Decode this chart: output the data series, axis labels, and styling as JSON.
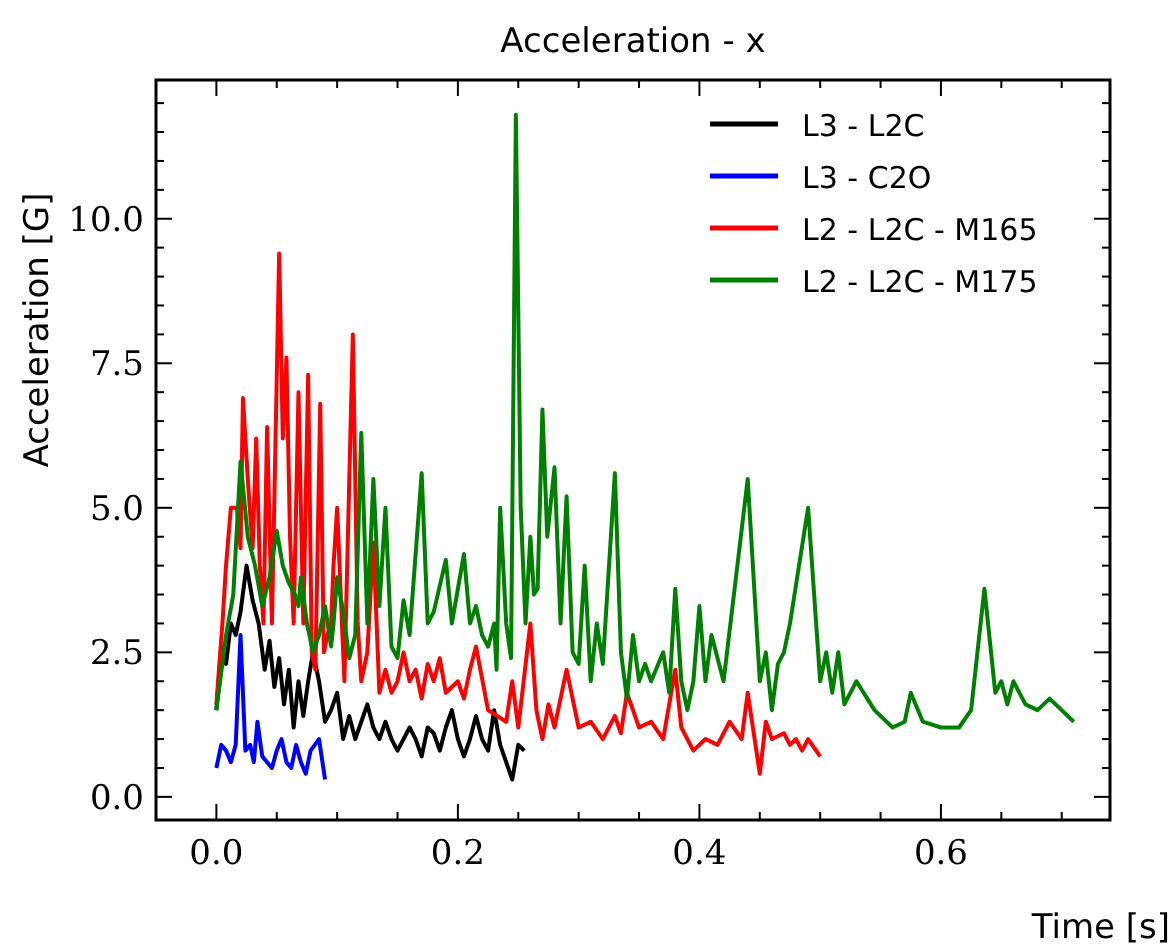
{
  "chart_data": {
    "type": "line",
    "title": "Acceleration - x",
    "xlabel": "Time [s]",
    "ylabel": "Acceleration [G]",
    "xlim": [
      -0.05,
      0.74
    ],
    "ylim": [
      -0.4,
      12.4
    ],
    "xticks": [
      {
        "value": 0,
        "label": "0.0"
      },
      {
        "value": 0.05,
        "label": null
      },
      {
        "value": 0.1,
        "label": null
      },
      {
        "value": 0.15,
        "label": null
      },
      {
        "value": 0.2,
        "label": "0.2"
      },
      {
        "value": 0.25,
        "label": null
      },
      {
        "value": 0.3,
        "label": null
      },
      {
        "value": 0.35,
        "label": null
      },
      {
        "value": 0.4,
        "label": "0.4"
      },
      {
        "value": 0.45,
        "label": null
      },
      {
        "value": 0.5,
        "label": null
      },
      {
        "value": 0.55,
        "label": null
      },
      {
        "value": 0.6,
        "label": "0.6"
      },
      {
        "value": 0.65,
        "label": null
      },
      {
        "value": 0.7,
        "label": null
      }
    ],
    "yticks": [
      {
        "value": 0,
        "label": "0.0"
      },
      {
        "value": 0.5,
        "label": null
      },
      {
        "value": 1,
        "label": null
      },
      {
        "value": 1.5,
        "label": null
      },
      {
        "value": 2,
        "label": null
      },
      {
        "value": 2.5,
        "label": "2.5"
      },
      {
        "value": 3,
        "label": null
      },
      {
        "value": 3.5,
        "label": null
      },
      {
        "value": 4,
        "label": null
      },
      {
        "value": 4.5,
        "label": null
      },
      {
        "value": 5,
        "label": "5.0"
      },
      {
        "value": 5.5,
        "label": null
      },
      {
        "value": 6,
        "label": null
      },
      {
        "value": 6.5,
        "label": null
      },
      {
        "value": 7,
        "label": null
      },
      {
        "value": 7.5,
        "label": "7.5"
      },
      {
        "value": 8,
        "label": null
      },
      {
        "value": 8.5,
        "label": null
      },
      {
        "value": 9,
        "label": null
      },
      {
        "value": 9.5,
        "label": null
      },
      {
        "value": 10,
        "label": "10.0"
      },
      {
        "value": 10.5,
        "label": null
      },
      {
        "value": 11,
        "label": null
      },
      {
        "value": 11.5,
        "label": null
      },
      {
        "value": 12,
        "label": null
      }
    ],
    "grid": false,
    "legend": "top right",
    "line_style": "solid",
    "marker": "none",
    "series": [
      {
        "name": "L3 - L2C",
        "color": "#000000",
        "x": [
          0,
          0.004,
          0.008,
          0.012,
          0.016,
          0.02,
          0.025,
          0.03,
          0.035,
          0.04,
          0.044,
          0.048,
          0.052,
          0.056,
          0.06,
          0.064,
          0.068,
          0.072,
          0.076,
          0.08,
          0.085,
          0.09,
          0.095,
          0.1,
          0.105,
          0.11,
          0.115,
          0.12,
          0.125,
          0.13,
          0.135,
          0.14,
          0.145,
          0.15,
          0.16,
          0.165,
          0.17,
          0.175,
          0.18,
          0.185,
          0.19,
          0.195,
          0.2,
          0.205,
          0.21,
          0.215,
          0.22,
          0.225,
          0.23,
          0.235,
          0.24,
          0.245,
          0.25,
          0.255
        ],
        "values": [
          1.5,
          2.6,
          2.3,
          3.0,
          2.8,
          3.2,
          4.0,
          3.4,
          3.0,
          2.2,
          2.7,
          1.9,
          2.4,
          1.6,
          2.2,
          1.2,
          2.0,
          1.4,
          2.0,
          2.5,
          2.0,
          1.3,
          1.5,
          1.8,
          1.0,
          1.4,
          1.0,
          1.3,
          1.6,
          1.2,
          1.0,
          1.3,
          1.0,
          0.8,
          1.2,
          1.0,
          0.7,
          1.2,
          1.1,
          0.8,
          1.2,
          1.5,
          1.0,
          0.7,
          1.0,
          1.4,
          1.0,
          0.8,
          1.5,
          0.9,
          0.6,
          0.3,
          0.9,
          0.8
        ]
      },
      {
        "name": "L3 - C2O",
        "color": "#0000ff",
        "x": [
          0,
          0.004,
          0.008,
          0.012,
          0.016,
          0.02,
          0.024,
          0.028,
          0.031,
          0.034,
          0.038,
          0.042,
          0.046,
          0.05,
          0.054,
          0.058,
          0.062,
          0.066,
          0.07,
          0.074,
          0.078,
          0.085,
          0.09
        ],
        "values": [
          0.5,
          0.9,
          0.8,
          0.6,
          0.9,
          2.8,
          0.8,
          0.9,
          0.6,
          1.3,
          0.7,
          0.6,
          0.5,
          0.8,
          1.0,
          0.6,
          0.5,
          0.9,
          0.6,
          0.4,
          0.8,
          1.0,
          0.3
        ]
      },
      {
        "name": "L2 - L2C - M165",
        "color": "#ff0000",
        "x": [
          0,
          0.005,
          0.008,
          0.012,
          0.017,
          0.02,
          0.022,
          0.026,
          0.03,
          0.033,
          0.036,
          0.039,
          0.042,
          0.046,
          0.052,
          0.055,
          0.058,
          0.061,
          0.064,
          0.068,
          0.072,
          0.076,
          0.079,
          0.082,
          0.086,
          0.089,
          0.092,
          0.095,
          0.097,
          0.1,
          0.106,
          0.113,
          0.117,
          0.12,
          0.125,
          0.13,
          0.135,
          0.14,
          0.145,
          0.15,
          0.155,
          0.16,
          0.165,
          0.17,
          0.175,
          0.18,
          0.185,
          0.19,
          0.2,
          0.205,
          0.21,
          0.215,
          0.225,
          0.24,
          0.245,
          0.25,
          0.26,
          0.265,
          0.27,
          0.275,
          0.28,
          0.29,
          0.3,
          0.31,
          0.32,
          0.33,
          0.335,
          0.34,
          0.35,
          0.36,
          0.37,
          0.38,
          0.385,
          0.395,
          0.405,
          0.415,
          0.425,
          0.435,
          0.44,
          0.45,
          0.455,
          0.46,
          0.47,
          0.475,
          0.48,
          0.485,
          0.49,
          0.5
        ],
        "values": [
          1.6,
          3.0,
          4.0,
          5.0,
          5.0,
          4.3,
          6.9,
          5.5,
          4.3,
          6.2,
          4.0,
          3.0,
          6.4,
          3.0,
          9.4,
          6.2,
          7.6,
          4.5,
          3.0,
          7.0,
          3.0,
          7.3,
          2.5,
          2.2,
          6.8,
          2.5,
          2.8,
          3.0,
          4.0,
          5.0,
          2.0,
          8.0,
          3.0,
          2.0,
          2.5,
          4.4,
          1.8,
          2.2,
          1.8,
          2.0,
          2.5,
          2.0,
          2.2,
          1.7,
          2.3,
          2.0,
          2.4,
          1.8,
          2.0,
          1.7,
          2.2,
          2.6,
          1.5,
          1.3,
          2.0,
          1.2,
          3.0,
          1.5,
          1.0,
          1.6,
          1.2,
          2.2,
          1.2,
          1.3,
          1.0,
          1.4,
          1.1,
          1.8,
          1.2,
          1.3,
          1.0,
          2.2,
          1.2,
          0.8,
          1.0,
          0.9,
          1.3,
          1.0,
          1.8,
          0.4,
          1.3,
          1.0,
          1.1,
          0.9,
          1.0,
          0.8,
          1.0,
          0.7
        ]
      },
      {
        "name": "L2 - L2C - M175",
        "color": "#008000",
        "x": [
          0,
          0.008,
          0.014,
          0.02,
          0.026,
          0.032,
          0.038,
          0.044,
          0.05,
          0.055,
          0.06,
          0.065,
          0.068,
          0.07,
          0.075,
          0.08,
          0.085,
          0.09,
          0.095,
          0.097,
          0.1,
          0.105,
          0.11,
          0.115,
          0.12,
          0.125,
          0.13,
          0.135,
          0.14,
          0.145,
          0.15,
          0.155,
          0.16,
          0.17,
          0.175,
          0.18,
          0.19,
          0.195,
          0.205,
          0.21,
          0.215,
          0.22,
          0.225,
          0.23,
          0.232,
          0.235,
          0.24,
          0.244,
          0.248,
          0.252,
          0.256,
          0.26,
          0.263,
          0.266,
          0.27,
          0.274,
          0.28,
          0.285,
          0.29,
          0.295,
          0.3,
          0.305,
          0.31,
          0.315,
          0.32,
          0.33,
          0.335,
          0.34,
          0.345,
          0.35,
          0.355,
          0.36,
          0.37,
          0.375,
          0.38,
          0.385,
          0.39,
          0.395,
          0.4,
          0.405,
          0.41,
          0.42,
          0.44,
          0.45,
          0.455,
          0.46,
          0.465,
          0.47,
          0.475,
          0.49,
          0.5,
          0.505,
          0.51,
          0.515,
          0.52,
          0.53,
          0.545,
          0.56,
          0.57,
          0.575,
          0.585,
          0.6,
          0.615,
          0.625,
          0.636,
          0.645,
          0.65,
          0.655,
          0.66,
          0.67,
          0.68,
          0.69,
          0.7,
          0.71
        ],
        "values": [
          1.5,
          2.8,
          3.5,
          5.8,
          4.5,
          4.0,
          3.3,
          3.8,
          4.6,
          4.0,
          3.7,
          3.5,
          3.3,
          3.8,
          3.0,
          2.5,
          2.8,
          3.3,
          2.6,
          3.0,
          3.8,
          3.2,
          2.4,
          2.8,
          6.3,
          3.0,
          5.5,
          3.3,
          5.0,
          2.6,
          2.4,
          3.4,
          2.8,
          5.6,
          3.0,
          3.2,
          4.1,
          3.0,
          4.2,
          3.0,
          3.3,
          2.8,
          2.6,
          3.0,
          2.2,
          5.0,
          3.0,
          2.4,
          11.8,
          5.0,
          3.0,
          4.5,
          3.5,
          3.6,
          6.7,
          4.5,
          5.7,
          3.0,
          5.2,
          2.5,
          2.3,
          4.0,
          2.0,
          3.0,
          2.3,
          5.6,
          2.5,
          1.7,
          2.8,
          2.0,
          2.3,
          2.0,
          2.5,
          1.8,
          3.6,
          2.0,
          1.5,
          2.0,
          3.3,
          2.0,
          2.8,
          2.0,
          5.5,
          2.0,
          2.5,
          1.5,
          2.3,
          2.5,
          3.0,
          5.0,
          2.0,
          2.5,
          1.8,
          2.5,
          1.6,
          2.0,
          1.5,
          1.2,
          1.3,
          1.8,
          1.3,
          1.2,
          1.2,
          1.5,
          3.6,
          1.8,
          2.0,
          1.6,
          2.0,
          1.6,
          1.5,
          1.7,
          1.5,
          1.3
        ]
      }
    ]
  }
}
